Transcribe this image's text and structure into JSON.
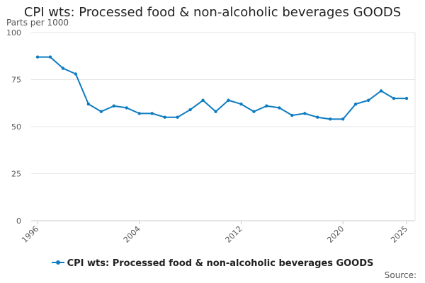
{
  "colors": {
    "series": "#0e7cc1",
    "grid": "#e6e6e6",
    "axis": "#cccccc",
    "text": "#555555"
  },
  "chart_data": {
    "type": "line",
    "title": "CPI wts: Processed food & non-alcoholic beverages GOODS",
    "ylabel": "Parts per 1000",
    "xlabel": "",
    "ylim": [
      0,
      100
    ],
    "xlim": [
      1996,
      2025
    ],
    "yticks": [
      0,
      25,
      50,
      75,
      100
    ],
    "xticks": [
      1996,
      2004,
      2012,
      2020,
      2025
    ],
    "ytick_labels": [
      "0",
      "25",
      "50",
      "75",
      "100"
    ],
    "xtick_labels": [
      "1996",
      "2004",
      "2012",
      "2020",
      "2025"
    ],
    "grid": true,
    "legend_position": "bottom",
    "source_text": "Source:",
    "series": [
      {
        "name": "CPI wts: Processed food & non-alcoholic beverages GOODS",
        "x": [
          1996,
          1997,
          1998,
          1999,
          2000,
          2001,
          2002,
          2003,
          2004,
          2005,
          2006,
          2007,
          2008,
          2009,
          2010,
          2011,
          2012,
          2013,
          2014,
          2015,
          2016,
          2017,
          2018,
          2019,
          2020,
          2021,
          2022,
          2023,
          2024,
          2025
        ],
        "values": [
          87,
          87,
          81,
          78,
          62,
          58,
          61,
          60,
          57,
          57,
          55,
          55,
          59,
          64,
          58,
          64,
          62,
          58,
          61,
          60,
          56,
          57,
          55,
          54,
          54,
          62,
          64,
          69,
          65,
          65
        ]
      }
    ]
  }
}
